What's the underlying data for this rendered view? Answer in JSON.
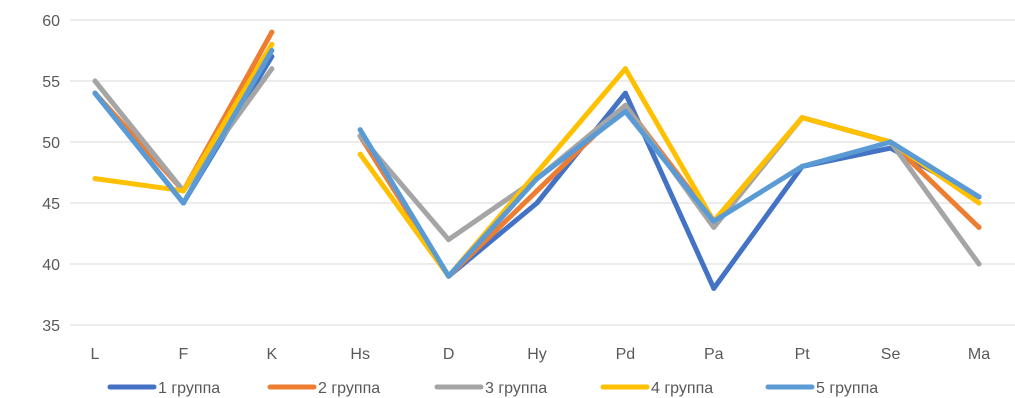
{
  "chart_data": {
    "type": "line",
    "title": "",
    "xlabel": "",
    "ylabel": "",
    "ylim": [
      35,
      60
    ],
    "yticks": [
      "35",
      "40",
      "45",
      "50",
      "55",
      "60"
    ],
    "categories": [
      "L",
      "F",
      "K",
      "Hs",
      "D",
      "Hy",
      "Pd",
      "Pa",
      "Pt",
      "Se",
      "Ma"
    ],
    "grid": "horizontal",
    "legend_position": "bottom",
    "series": [
      {
        "name": "1 группа",
        "color": "#4472c4",
        "values": [
          54,
          45,
          57,
          50.5,
          39,
          45,
          54,
          38,
          48,
          49.5,
          45.5
        ]
      },
      {
        "name": "2 группа",
        "color": "#ed7d31",
        "values": [
          54,
          46,
          59,
          50.5,
          39,
          46,
          53,
          43.5,
          52,
          50,
          43
        ]
      },
      {
        "name": "3 группа",
        "color": "#a5a5a5",
        "values": [
          55,
          46,
          56,
          50.5,
          42,
          47,
          53,
          43,
          52,
          50,
          40
        ]
      },
      {
        "name": "4 группа",
        "color": "#ffc000",
        "values": [
          47,
          46,
          58,
          49,
          39,
          47.5,
          56,
          43.5,
          52,
          50,
          45
        ]
      },
      {
        "name": "5 группа",
        "color": "#5b9bd5",
        "values": [
          54,
          45,
          57.5,
          51,
          39,
          47,
          52.5,
          43.5,
          48,
          50,
          45.5
        ]
      }
    ],
    "segment_breaks_after_index": [
      2
    ]
  }
}
